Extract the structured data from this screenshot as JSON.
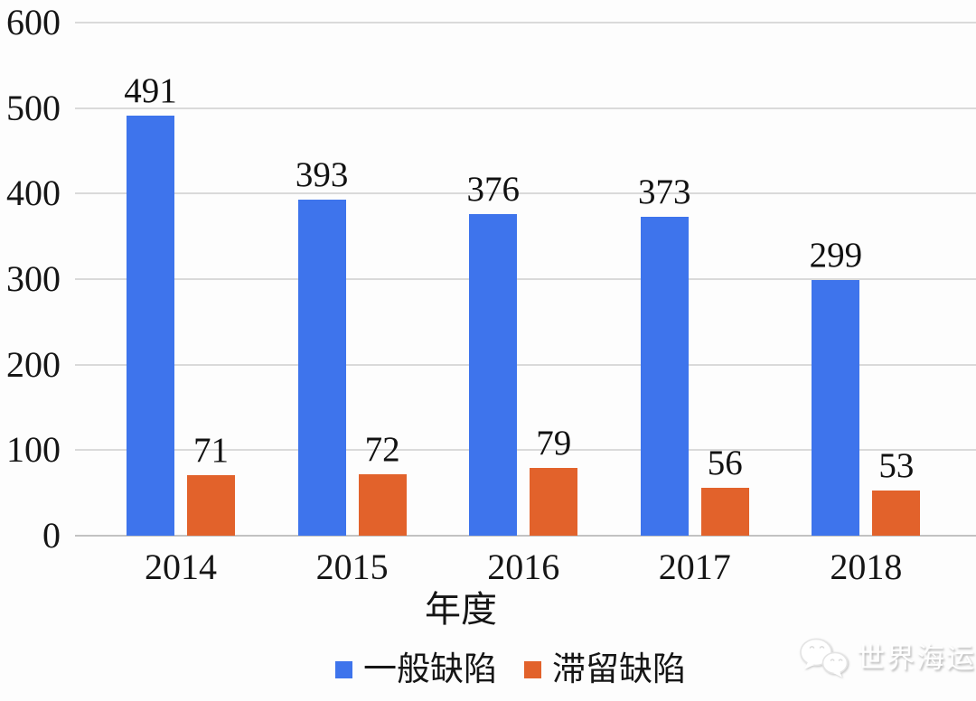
{
  "chart_data": {
    "type": "bar",
    "categories": [
      "2014",
      "2015",
      "2016",
      "2017",
      "2018"
    ],
    "series": [
      {
        "name": "一般缺陷",
        "color": "#3E74EC",
        "values": [
          491,
          393,
          376,
          373,
          299
        ]
      },
      {
        "name": "滞留缺陷",
        "color": "#E2622B",
        "values": [
          71,
          72,
          79,
          56,
          53
        ]
      }
    ],
    "title": "",
    "xlabel": "年度",
    "ylabel": "",
    "ylim": [
      0,
      600
    ],
    "yticks": [
      0,
      100,
      200,
      300,
      400,
      500,
      600
    ],
    "grid": true,
    "legend_position": "bottom",
    "gridline_color": "#dadada",
    "label_color": "#151515"
  },
  "watermark": {
    "icon": "wechat-icon",
    "text": "世界海运"
  }
}
